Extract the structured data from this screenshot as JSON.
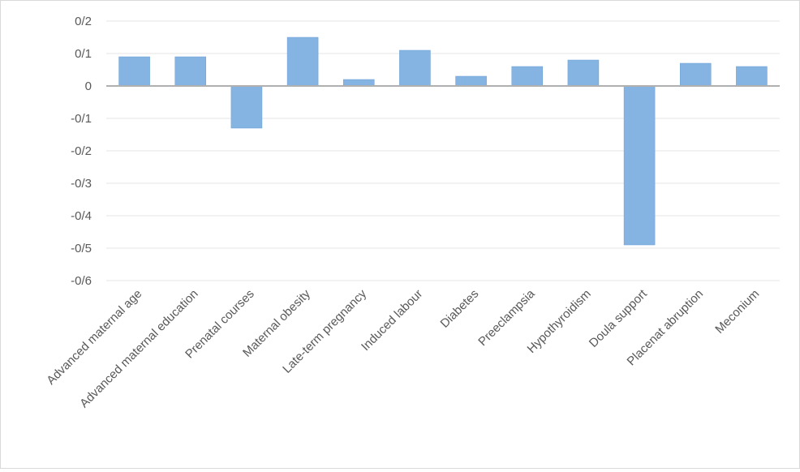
{
  "chart_data": {
    "type": "bar",
    "title": "",
    "xlabel": "",
    "ylabel": "",
    "categories": [
      "Advanced maternal age",
      "Advanced maternal education",
      "Prenatal courses",
      "Maternal obesity",
      "Late-term pregnancy",
      "Induced labour",
      "Diabetes",
      "Preeclampsia",
      "Hypothyroidism",
      "Doula support",
      "Placenat abruption",
      "Meconium"
    ],
    "series": [
      {
        "values": [
          0.09,
          0.09,
          -0.13,
          0.15,
          0.02,
          0.11,
          0.03,
          0.06,
          0.08,
          -0.49,
          0.07,
          0.06
        ]
      }
    ],
    "ylim": [
      -0.6,
      0.2
    ],
    "yticks": [
      0.2,
      0.1,
      0,
      -0.1,
      -0.2,
      -0.3,
      -0.4,
      -0.5,
      -0.6
    ],
    "ytick_labels": [
      "0/2",
      "0/1",
      "0",
      "-0/1",
      "-0/2",
      "-0/3",
      "-0/4",
      "-0/5",
      "-0/6"
    ],
    "bar_color": "#85b4e3",
    "bar_edge_color": "#6a9fd4",
    "grid": true,
    "legend": "none"
  }
}
